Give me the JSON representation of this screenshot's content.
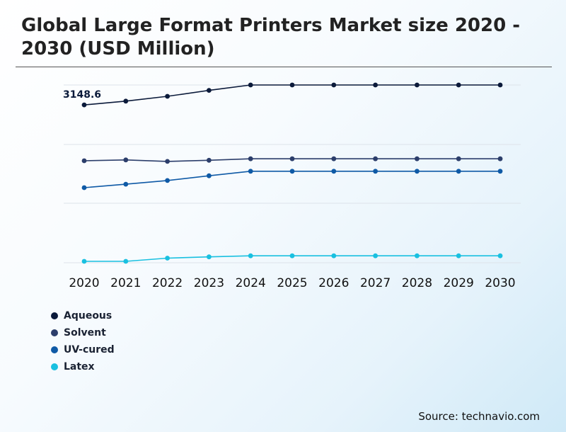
{
  "title": "Global Large Format Printers Market size 2020 - 2030 (USD Million)",
  "source": "Source: technavio.com",
  "chart_data": {
    "type": "line",
    "title": "Global Large Format Printers Market size 2020 - 2030 (USD Million)",
    "xlabel": "",
    "ylabel": "",
    "categories": [
      "2020",
      "2021",
      "2022",
      "2023",
      "2024",
      "2025",
      "2026",
      "2027",
      "2028",
      "2029",
      "2030"
    ],
    "grid": true,
    "legend_position": "bottom-left",
    "annotations": [
      {
        "series": "Aqueous",
        "x": "2020",
        "text": "3148.6"
      }
    ],
    "series": [
      {
        "name": "Aqueous",
        "color": "#0b1a3a",
        "values": [
          3148.6,
          3202,
          3270,
          3354,
          3430,
          3430,
          3430,
          3430,
          3430,
          3430,
          3430
        ]
      },
      {
        "name": "Solvent",
        "color": "#2c3e6b",
        "values": [
          2360,
          2372,
          2351,
          2367,
          2388,
          2388,
          2388,
          2388,
          2388,
          2388,
          2388
        ]
      },
      {
        "name": "UV-cured",
        "color": "#0f5aa6",
        "values": [
          1980,
          2029,
          2081,
          2148,
          2212,
          2212,
          2212,
          2212,
          2212,
          2212,
          2212
        ]
      },
      {
        "name": "Latex",
        "color": "#19c0e0",
        "values": [
          940,
          940,
          985,
          1003,
          1018,
          1018,
          1018,
          1018,
          1018,
          1018,
          1018
        ]
      }
    ],
    "ylim": [
      930,
      3430
    ]
  }
}
